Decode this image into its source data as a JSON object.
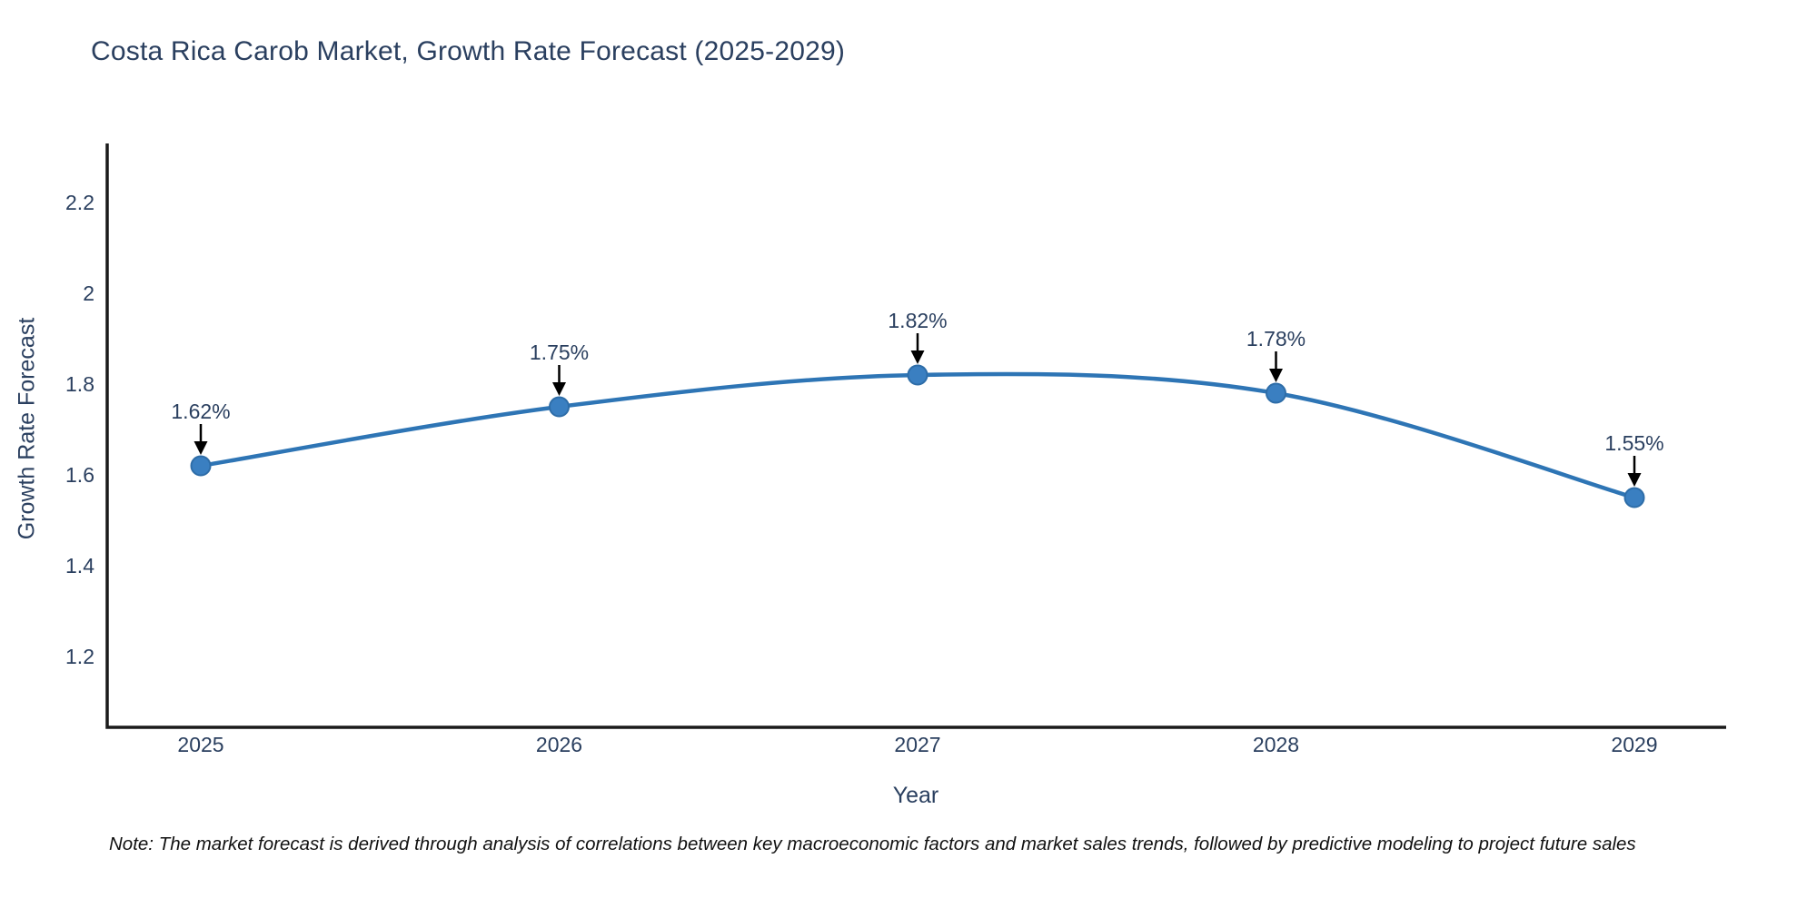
{
  "footnote": "Note: The market forecast is derived through analysis of correlations between key macroeconomic factors and market sales trends, followed by predictive modeling to project future sales",
  "chart_data": {
    "type": "line",
    "title": "Costa Rica Carob Market, Growth Rate Forecast (2025-2029)",
    "xlabel": "Year",
    "ylabel": "Growth Rate Forecast",
    "categories": [
      "2025",
      "2026",
      "2027",
      "2028",
      "2029"
    ],
    "series": [
      {
        "name": "Growth Rate Forecast",
        "values": [
          1.62,
          1.75,
          1.82,
          1.78,
          1.55
        ]
      }
    ],
    "point_labels": [
      "1.62%",
      "1.75%",
      "1.82%",
      "1.78%",
      "1.55%"
    ],
    "yticks": [
      "1.2",
      "1.4",
      "1.6",
      "1.8",
      "2",
      "2.2"
    ],
    "ytick_values": [
      1.2,
      1.4,
      1.6,
      1.8,
      2.0,
      2.2
    ],
    "ylim": [
      1.04,
      2.33
    ],
    "grid": false,
    "legend_position": "none",
    "line_shape": "spline",
    "annotations_have_arrows": true,
    "colors": {
      "line": "#2e75b5",
      "marker_fill": "#3a7fc1",
      "marker_edge": "#2e6da8",
      "arrow": "#000000",
      "axis_line": "#1a1a1a",
      "label_text": "#2a3f5f",
      "note_text": "#111111"
    }
  }
}
